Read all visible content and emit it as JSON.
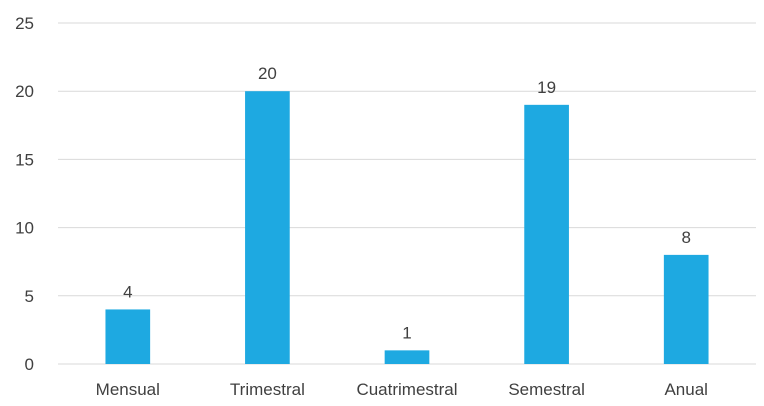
{
  "chart_data": {
    "type": "bar",
    "title": "",
    "xlabel": "",
    "ylabel": "",
    "categories": [
      "Mensual",
      "Trimestral",
      "Cuatrimestral",
      "Semestral",
      "Anual"
    ],
    "values": [
      4,
      20,
      1,
      19,
      8
    ],
    "ylim": [
      0,
      25
    ],
    "yticks": [
      0,
      5,
      10,
      15,
      20,
      25
    ],
    "grid": true,
    "legend": "none",
    "data_labels": true,
    "bar_color": "#1ea9e1"
  }
}
